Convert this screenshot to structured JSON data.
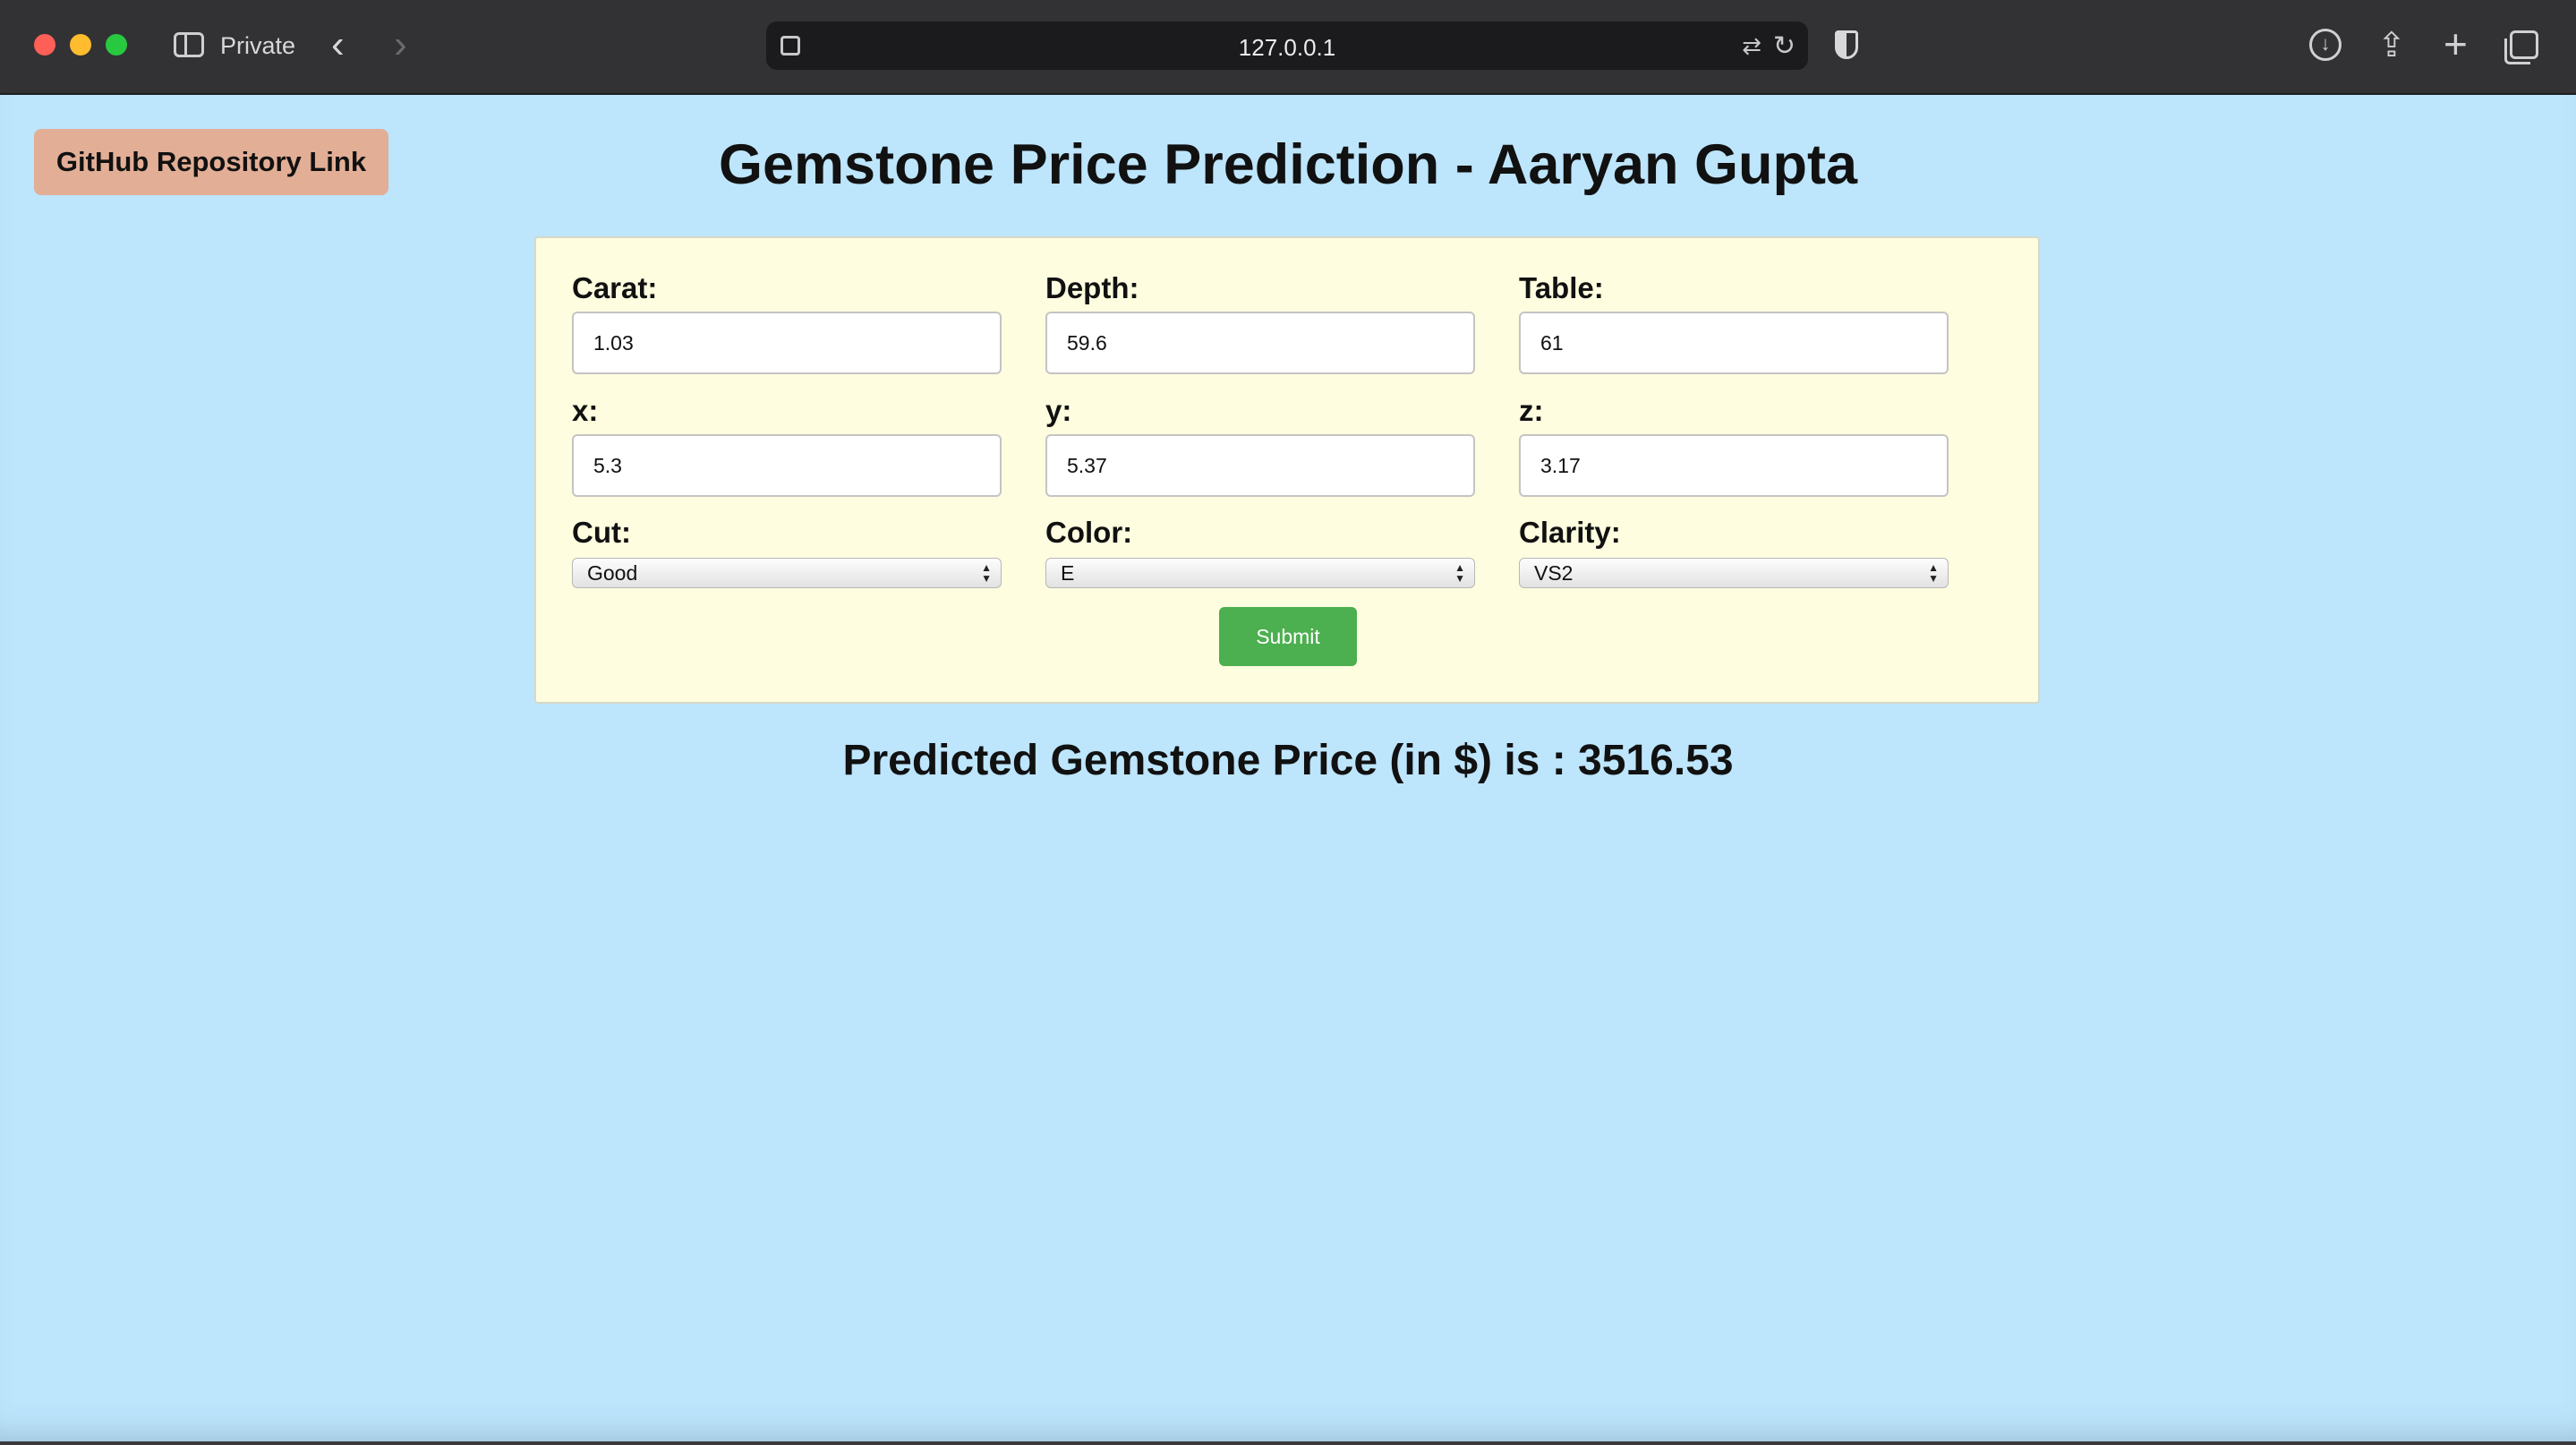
{
  "browser": {
    "mode_label": "Private",
    "address": "127.0.0.1"
  },
  "page": {
    "github_link_label": "GitHub Repository Link",
    "title": "Gemstone Price Prediction - Aaryan Gupta",
    "fields": {
      "carat": {
        "label": "Carat:",
        "value": "1.03"
      },
      "depth": {
        "label": "Depth:",
        "value": "59.6"
      },
      "table": {
        "label": "Table:",
        "value": "61"
      },
      "x": {
        "label": "x:",
        "value": "5.3"
      },
      "y": {
        "label": "y:",
        "value": "5.37"
      },
      "z": {
        "label": "z:",
        "value": "3.17"
      },
      "cut": {
        "label": "Cut:",
        "selected": "Good"
      },
      "color": {
        "label": "Color:",
        "selected": "E"
      },
      "clarity": {
        "label": "Clarity:",
        "selected": "VS2"
      }
    },
    "submit_label": "Submit",
    "result": "Predicted Gemstone Price (in $) is : 3516.53"
  },
  "colors": {
    "page_background": "#bde5fc",
    "form_background": "#fefddf",
    "github_button": "#e2ae96",
    "submit_button": "#4caf50"
  }
}
